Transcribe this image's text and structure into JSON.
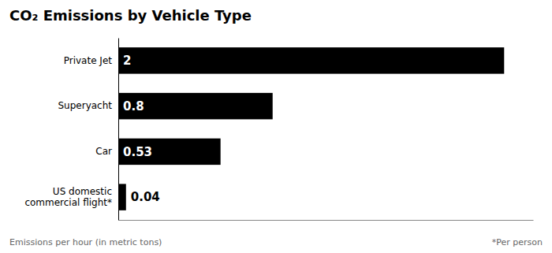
{
  "chart_data": {
    "type": "bar",
    "orientation": "horizontal",
    "title": "CO₂ Emissions by Vehicle Type",
    "categories": [
      "Private Jet",
      "Superyacht",
      "Car",
      "US domestic\ncommercial flight*"
    ],
    "values": [
      2.0,
      0.8,
      0.53,
      0.04
    ],
    "value_labels": [
      "2",
      "0.8",
      "0.53",
      "0.04"
    ],
    "data_labels": true,
    "color": "#000000",
    "xlim": [
      0,
      2.15
    ],
    "xlabel": "Emissions per hour (in metric tons)",
    "annotations": [
      "*Per person"
    ],
    "tick_labels": "y",
    "grid": false
  }
}
